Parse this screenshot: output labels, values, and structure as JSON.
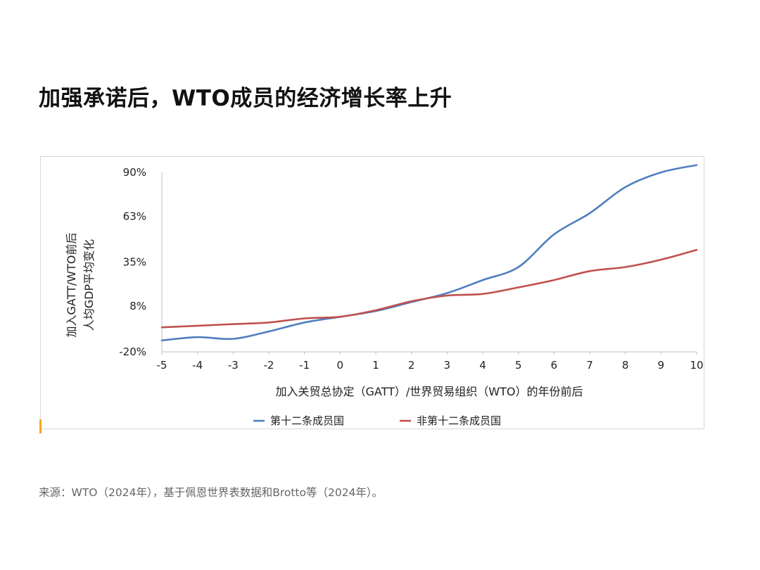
{
  "page": {
    "title": "加强承诺后，WTO成员的经济增长率上升",
    "source": "来源：WTO（2024年），基于佩恩世界表数据和Brotto等（2024年）。"
  },
  "colors": {
    "accent": "#f5a623",
    "series_blue": "#4f7fbf",
    "series_red": "#c0504d"
  },
  "chart_data": {
    "type": "line",
    "title": "",
    "ylabel_lines": [
      "加入GATT/WTO前后",
      "人均GDP平均变化"
    ],
    "xlabel": "加入关贸总协定（GATT）/世界贸易组织（WTO）的年份前后",
    "x": [
      -5,
      -4,
      -3,
      -2,
      -1,
      0,
      1,
      2,
      3,
      4,
      5,
      6,
      7,
      8,
      9,
      10
    ],
    "y_ticks": [
      "90%",
      "63%",
      "35%",
      "8%",
      "-20%"
    ],
    "y_tick_values": [
      90,
      63,
      35,
      8,
      -20
    ],
    "ylim": [
      -20,
      90
    ],
    "xlim": [
      -5,
      10
    ],
    "grid": false,
    "legend_position": "bottom",
    "series": [
      {
        "name": "第十二条成员国",
        "color": "#4f7fbf",
        "values": [
          -13,
          -11,
          -12,
          -7.5,
          -2,
          1.5,
          5,
          10.5,
          16,
          24,
          32,
          52,
          65,
          81,
          90,
          94.5
        ]
      },
      {
        "name": "非第十二条成员国",
        "color": "#c0504d",
        "values": [
          -5,
          -4,
          -3,
          -2,
          0.5,
          1.5,
          5.5,
          11,
          14.5,
          15.5,
          19.5,
          24,
          29.5,
          32,
          36.5,
          42.5
        ]
      }
    ]
  }
}
